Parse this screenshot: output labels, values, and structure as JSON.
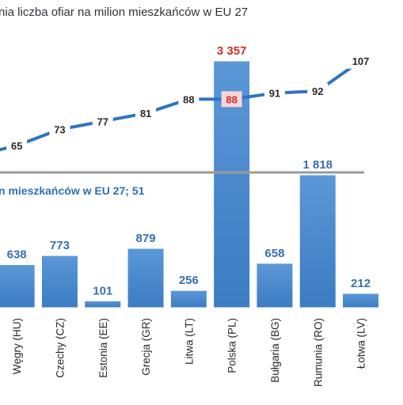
{
  "chart_data": {
    "type": "bar",
    "title_fragment": "nia liczba ofiar na milion mieszkańców w EU 27",
    "reference_label": "n mieszkańców w EU 27;   51",
    "categories": [
      "Węgry (HU)",
      "Czechy (CZ)",
      "Estonia (EE)",
      "Grecja (GR)",
      "Litwa (LT)",
      "Polska (PL)",
      "Bułgaria (BG)",
      "Rumunia (RO)",
      "Łotwa (LV)"
    ],
    "bar_labels": [
      "638",
      "773",
      "101",
      "879",
      "256",
      "3 357",
      "658",
      "1 818",
      "212"
    ],
    "bar_values": [
      638,
      773,
      101,
      879,
      256,
      3357,
      658,
      1818,
      212
    ],
    "line_points_labels": [
      "65",
      "73",
      "77",
      "81",
      "88",
      "88",
      "91",
      "92",
      "107"
    ],
    "line_values": [
      65,
      73,
      77,
      81,
      88,
      88,
      91,
      92,
      107
    ],
    "line_start_value": 62,
    "highlight_index": 5,
    "colors": {
      "bar": "#4a89cf",
      "bar_highlight": "#4f93d8",
      "line": "#2e75c2",
      "reference_line": "#999999",
      "highlight_text": "#d62a2a",
      "highlight_box": "#f6d6d6"
    }
  }
}
